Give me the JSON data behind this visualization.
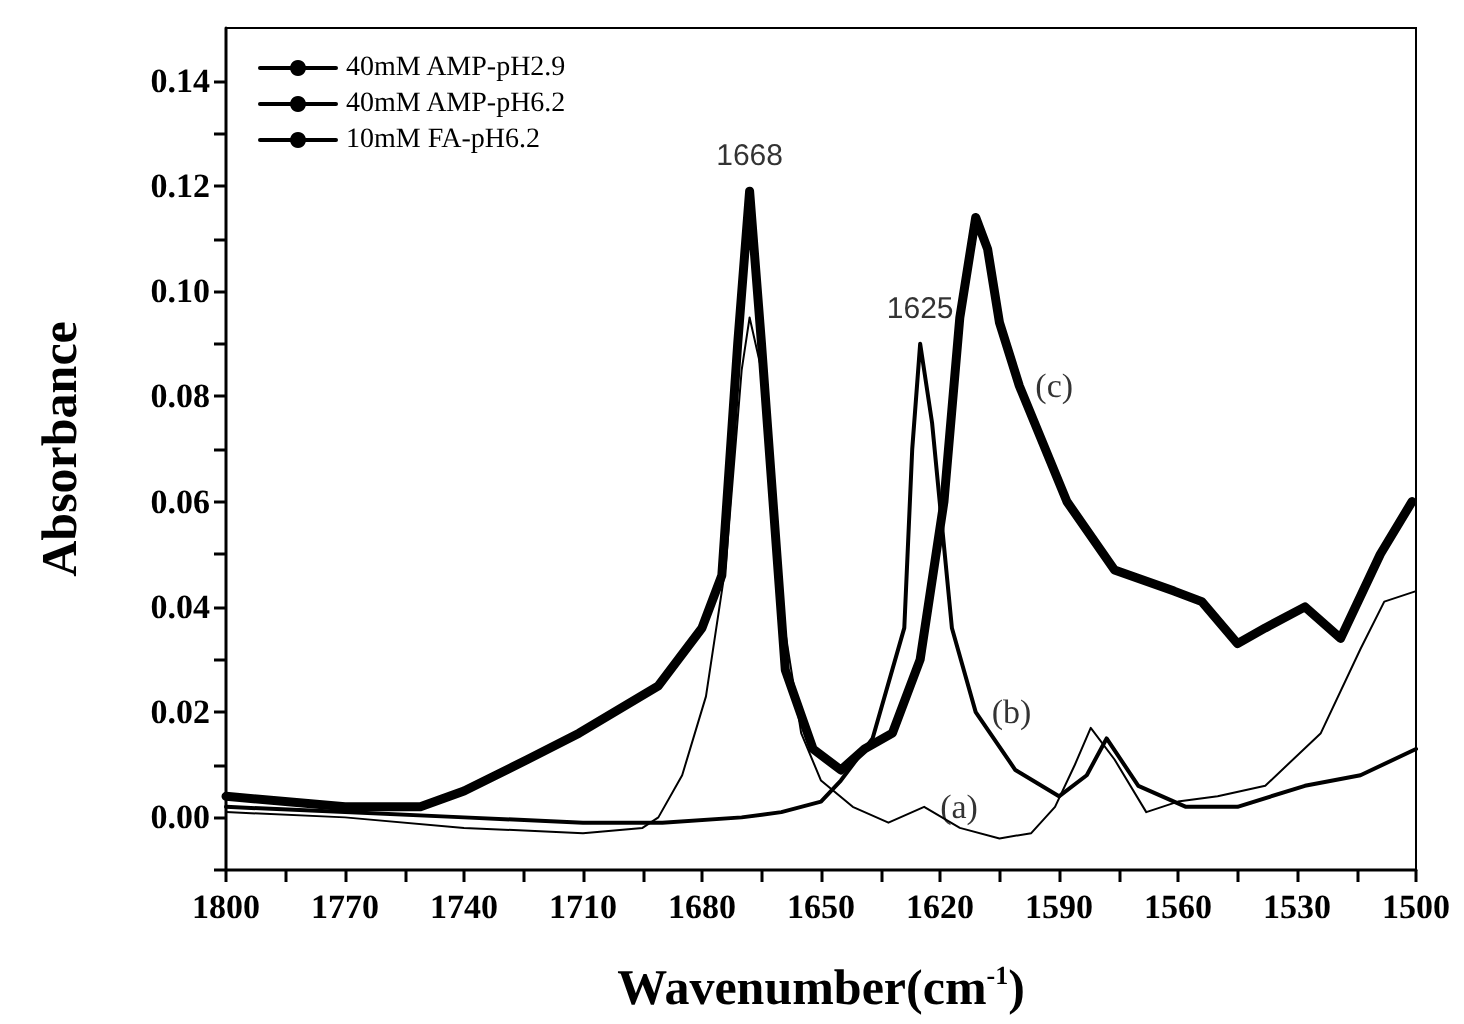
{
  "chart_data": {
    "type": "line",
    "xlabel": "Wavenumber(cm$^{-1}$)",
    "ylabel": "Absorbance",
    "xlim": [
      1800,
      1500
    ],
    "xticks": [
      1800,
      1770,
      1740,
      1710,
      1680,
      1650,
      1620,
      1590,
      1560,
      1530,
      1500
    ],
    "ylim": [
      -0.01,
      0.15
    ],
    "yticks": [
      {
        "value": 0,
        "label": "0.00"
      },
      {
        "value": 0.02,
        "label": "0.02"
      },
      {
        "value": 0.04,
        "label": "0.04"
      },
      {
        "value": 0.06,
        "label": "0.06"
      },
      {
        "value": 0.08,
        "label": "0.08"
      },
      {
        "value": 0.1,
        "label": "0.10"
      },
      {
        "value": 0.12,
        "label": "0.12"
      },
      {
        "value": 0.14,
        "label": "0.14"
      }
    ],
    "grid": false,
    "legend": "top left",
    "marker": "none",
    "line_style": "solid",
    "series": [
      {
        "name": "40mM AMP-pH2.9",
        "color": "#000000",
        "x": [
          1800,
          1770,
          1740,
          1710,
          1695,
          1691,
          1685,
          1679,
          1674,
          1670,
          1668,
          1665,
          1660,
          1655,
          1650,
          1642,
          1633,
          1624,
          1615,
          1605,
          1597,
          1591,
          1586,
          1582,
          1576,
          1568,
          1560,
          1550,
          1538,
          1524,
          1514,
          1508,
          1500
        ],
        "values": [
          0.001,
          0.0,
          -0.002,
          -0.003,
          -0.002,
          0.0,
          0.008,
          0.023,
          0.048,
          0.085,
          0.095,
          0.085,
          0.04,
          0.016,
          0.007,
          0.002,
          -0.001,
          0.002,
          -0.002,
          -0.004,
          -0.003,
          0.002,
          0.01,
          0.017,
          0.011,
          0.001,
          0.003,
          0.004,
          0.006,
          0.016,
          0.032,
          0.041,
          0.043
        ]
      },
      {
        "name": "40mM AMP-pH6.2",
        "color": "#000000",
        "x": [
          1800,
          1770,
          1740,
          1710,
          1690,
          1670,
          1660,
          1650,
          1645,
          1637,
          1629,
          1627,
          1625,
          1622,
          1617,
          1611,
          1601,
          1590,
          1583,
          1578,
          1570,
          1558,
          1545,
          1528,
          1514,
          1500
        ],
        "values": [
          0.002,
          0.001,
          0.0,
          -0.001,
          -0.001,
          0.0,
          0.001,
          0.003,
          0.007,
          0.015,
          0.036,
          0.07,
          0.09,
          0.075,
          0.036,
          0.02,
          0.009,
          0.004,
          0.008,
          0.015,
          0.006,
          0.002,
          0.002,
          0.006,
          0.008,
          0.013
        ]
      },
      {
        "name": "10mM FA-pH6.2",
        "color": "#000000",
        "x": [
          1800,
          1770,
          1751,
          1740,
          1724,
          1711,
          1691,
          1680,
          1675,
          1671,
          1668,
          1665,
          1659,
          1652,
          1645,
          1639,
          1632,
          1625,
          1619,
          1615,
          1611,
          1608,
          1605,
          1600,
          1588,
          1576,
          1561,
          1554,
          1545,
          1538,
          1528,
          1519,
          1509,
          1501
        ],
        "values": [
          0.004,
          0.002,
          0.002,
          0.005,
          0.011,
          0.016,
          0.025,
          0.036,
          0.046,
          0.09,
          0.119,
          0.09,
          0.028,
          0.013,
          0.009,
          0.013,
          0.016,
          0.03,
          0.06,
          0.095,
          0.114,
          0.108,
          0.094,
          0.082,
          0.06,
          0.047,
          0.043,
          0.041,
          0.033,
          0.036,
          0.04,
          0.034,
          0.05,
          0.06
        ]
      }
    ],
    "annotations": [
      {
        "text": "1668",
        "x": 1668,
        "y": 0.119
      },
      {
        "text": "1625",
        "x": 1625,
        "y": 0.09
      },
      {
        "text": "(a)",
        "x": 1624,
        "y": 0.002
      },
      {
        "text": "(b)",
        "x": 1611,
        "y": 0.02
      },
      {
        "text": "(c)",
        "x": 1600,
        "y": 0.082
      }
    ]
  }
}
